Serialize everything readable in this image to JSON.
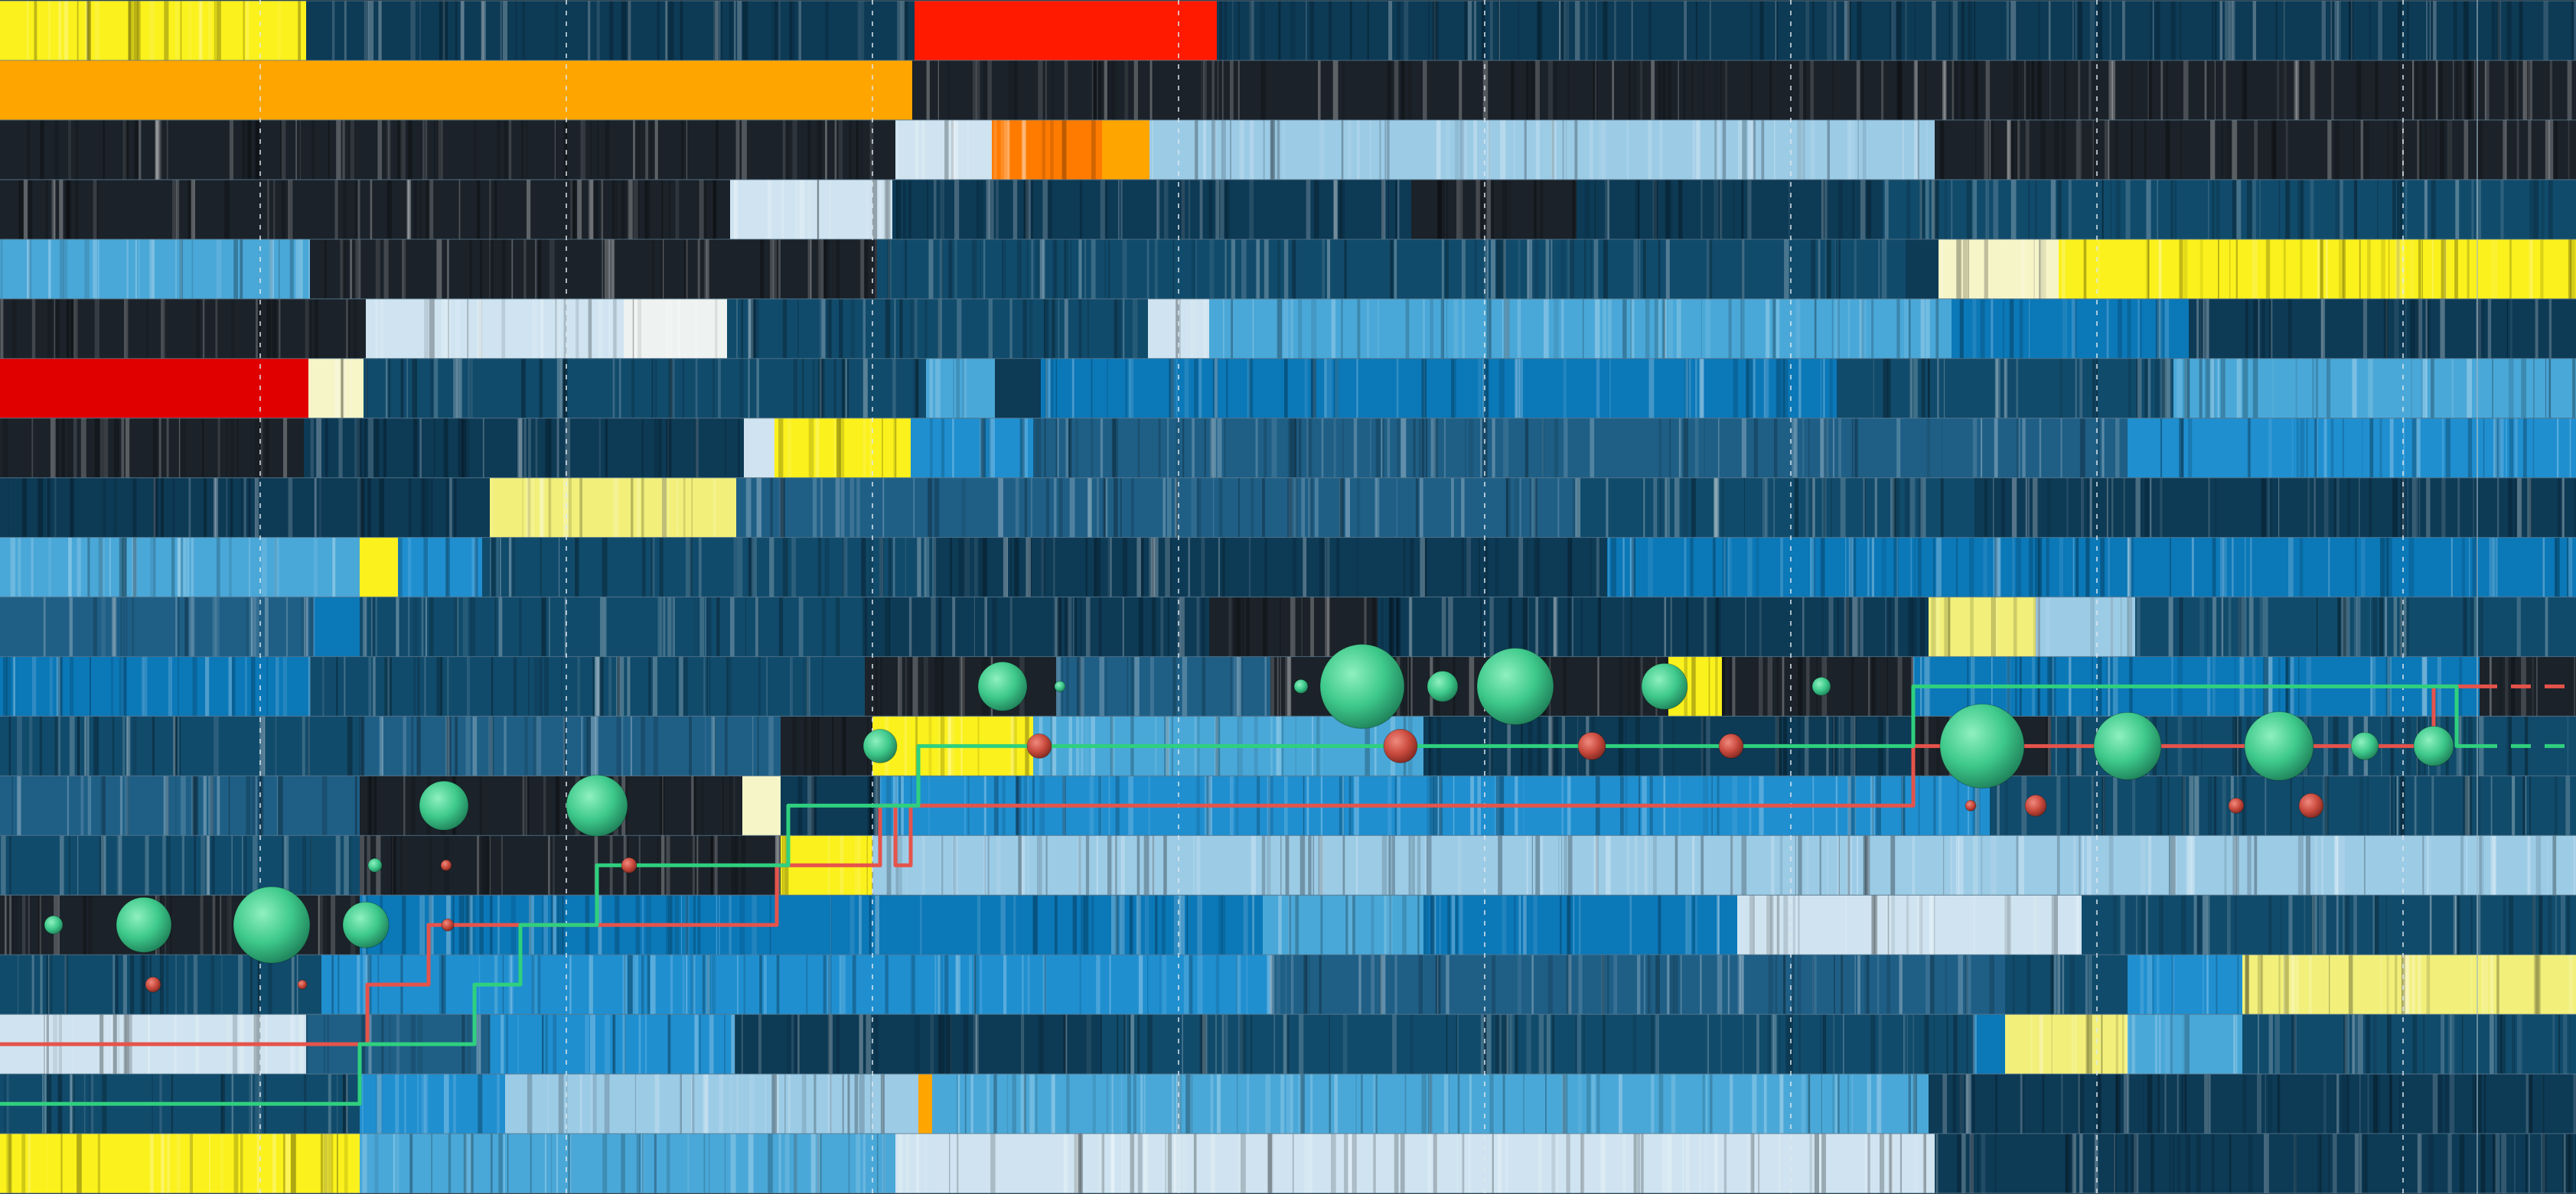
{
  "chart_data": {
    "type": "heatmap",
    "title": "",
    "xlabel": "",
    "ylabel": "",
    "grid": true,
    "legend": "none",
    "palette": {
      "dark": "#1b2229",
      "navy": "#0d3a55",
      "deep": "#114b6b",
      "mid": "#1f5f86",
      "blue": "#0b78b8",
      "bright": "#1f8fd0",
      "sky": "#4aa8d8",
      "pale": "#9ccbe6",
      "ice": "#cfe4f0",
      "white": "#eef2f0",
      "cream": "#f5f5c8",
      "lightyellow": "#f2f07a",
      "yellow": "#fbf11c",
      "gold": "#ffd21f",
      "orange": "#ffa500",
      "darkorange": "#ff7b00",
      "red": "#ff1a00",
      "crimson": "#e00000",
      "path_red": "#e5534b",
      "path_green": "#2fd07e",
      "node_green": "#3ec98b",
      "node_red": "#c94a3d"
    },
    "grid_x": [
      340,
      740,
      1140,
      1540,
      1940,
      2340,
      2740,
      3140
    ],
    "rows": [
      {
        "segments": [
          [
            0,
            400,
            "yellow"
          ],
          [
            400,
            1195,
            "navy"
          ],
          [
            1195,
            1590,
            "red"
          ],
          [
            1590,
            3237,
            "navy"
          ],
          [
            3237,
            3366,
            "navy"
          ]
        ]
      },
      {
        "segments": [
          [
            0,
            1192,
            "orange"
          ],
          [
            1192,
            3366,
            "dark"
          ]
        ]
      },
      {
        "segments": [
          [
            0,
            1170,
            "dark"
          ],
          [
            1170,
            1296,
            "ice"
          ],
          [
            1296,
            1440,
            "darkorange"
          ],
          [
            1440,
            1502,
            "orange"
          ],
          [
            1502,
            2528,
            "pale"
          ],
          [
            2528,
            3366,
            "dark"
          ]
        ]
      },
      {
        "segments": [
          [
            0,
            954,
            "dark"
          ],
          [
            954,
            1166,
            "ice"
          ],
          [
            1166,
            1844,
            "navy"
          ],
          [
            1844,
            2060,
            "dark"
          ],
          [
            2060,
            2460,
            "navy"
          ],
          [
            2460,
            3366,
            "deep"
          ]
        ]
      },
      {
        "segments": [
          [
            0,
            405,
            "sky"
          ],
          [
            405,
            1146,
            "dark"
          ],
          [
            1146,
            2490,
            "deep"
          ],
          [
            2490,
            2533,
            "navy"
          ],
          [
            2533,
            2690,
            "cream"
          ],
          [
            2690,
            3190,
            "yellow"
          ],
          [
            3190,
            3366,
            "yellow"
          ]
        ]
      },
      {
        "segments": [
          [
            0,
            478,
            "dark"
          ],
          [
            478,
            815,
            "ice"
          ],
          [
            815,
            950,
            "white"
          ],
          [
            950,
            1500,
            "deep"
          ],
          [
            1500,
            1580,
            "ice"
          ],
          [
            1580,
            2550,
            "sky"
          ],
          [
            2550,
            2860,
            "blue"
          ],
          [
            2860,
            3366,
            "navy"
          ]
        ]
      },
      {
        "segments": [
          [
            0,
            403,
            "crimson"
          ],
          [
            403,
            475,
            "cream"
          ],
          [
            475,
            1210,
            "deep"
          ],
          [
            1210,
            1300,
            "sky"
          ],
          [
            1300,
            1360,
            "navy"
          ],
          [
            1360,
            2400,
            "blue"
          ],
          [
            2400,
            2840,
            "deep"
          ],
          [
            2840,
            3366,
            "sky"
          ]
        ]
      },
      {
        "segments": [
          [
            0,
            397,
            "dark"
          ],
          [
            397,
            972,
            "navy"
          ],
          [
            972,
            1012,
            "ice"
          ],
          [
            1012,
            1190,
            "yellow"
          ],
          [
            1190,
            1350,
            "bright"
          ],
          [
            1350,
            2780,
            "mid"
          ],
          [
            2780,
            3366,
            "bright"
          ]
        ]
      },
      {
        "segments": [
          [
            0,
            600,
            "navy"
          ],
          [
            600,
            640,
            "navy"
          ],
          [
            640,
            962,
            "lightyellow"
          ],
          [
            962,
            2060,
            "mid"
          ],
          [
            2060,
            2580,
            "deep"
          ],
          [
            2580,
            3366,
            "navy"
          ]
        ]
      },
      {
        "segments": [
          [
            0,
            470,
            "sky"
          ],
          [
            470,
            520,
            "yellow"
          ],
          [
            520,
            630,
            "bright"
          ],
          [
            630,
            1220,
            "deep"
          ],
          [
            1220,
            2100,
            "navy"
          ],
          [
            2100,
            3366,
            "blue"
          ]
        ]
      },
      {
        "segments": [
          [
            0,
            410,
            "mid"
          ],
          [
            410,
            470,
            "blue"
          ],
          [
            470,
            1130,
            "deep"
          ],
          [
            1130,
            1580,
            "navy"
          ],
          [
            1580,
            1800,
            "dark"
          ],
          [
            1800,
            2520,
            "navy"
          ],
          [
            2520,
            2660,
            "lightyellow"
          ],
          [
            2660,
            2790,
            "pale"
          ],
          [
            2790,
            3366,
            "deep"
          ]
        ]
      },
      {
        "segments": [
          [
            0,
            405,
            "blue"
          ],
          [
            405,
            1130,
            "deep"
          ],
          [
            1130,
            1380,
            "dark"
          ],
          [
            1380,
            1660,
            "mid"
          ],
          [
            1660,
            2180,
            "dark"
          ],
          [
            2180,
            2250,
            "yellow"
          ],
          [
            2250,
            2500,
            "dark"
          ],
          [
            2500,
            3240,
            "blue"
          ],
          [
            3240,
            3366,
            "dark"
          ]
        ]
      },
      {
        "segments": [
          [
            0,
            470,
            "deep"
          ],
          [
            470,
            1020,
            "mid"
          ],
          [
            1020,
            1140,
            "dark"
          ],
          [
            1140,
            1350,
            "yellow"
          ],
          [
            1350,
            1860,
            "sky"
          ],
          [
            1860,
            2500,
            "navy"
          ],
          [
            2500,
            2680,
            "dark"
          ],
          [
            2680,
            3366,
            "deep"
          ]
        ]
      },
      {
        "segments": [
          [
            0,
            470,
            "mid"
          ],
          [
            470,
            970,
            "dark"
          ],
          [
            970,
            1020,
            "cream"
          ],
          [
            1020,
            1150,
            "navy"
          ],
          [
            1150,
            2600,
            "bright"
          ],
          [
            2600,
            3366,
            "deep"
          ]
        ]
      },
      {
        "segments": [
          [
            0,
            470,
            "deep"
          ],
          [
            470,
            1020,
            "dark"
          ],
          [
            1020,
            1140,
            "yellow"
          ],
          [
            1140,
            2700,
            "pale"
          ],
          [
            2700,
            3366,
            "pale"
          ]
        ]
      },
      {
        "segments": [
          [
            0,
            470,
            "dark"
          ],
          [
            470,
            1650,
            "blue"
          ],
          [
            1650,
            1860,
            "sky"
          ],
          [
            1860,
            2270,
            "blue"
          ],
          [
            2270,
            2720,
            "ice"
          ],
          [
            2720,
            3366,
            "deep"
          ]
        ]
      },
      {
        "segments": [
          [
            0,
            420,
            "deep"
          ],
          [
            420,
            1660,
            "bright"
          ],
          [
            1660,
            2620,
            "mid"
          ],
          [
            2620,
            2780,
            "deep"
          ],
          [
            2780,
            2930,
            "bright"
          ],
          [
            2930,
            3366,
            "lightyellow"
          ]
        ]
      },
      {
        "segments": [
          [
            0,
            400,
            "ice"
          ],
          [
            400,
            640,
            "mid"
          ],
          [
            640,
            960,
            "bright"
          ],
          [
            960,
            1440,
            "navy"
          ],
          [
            1440,
            2580,
            "deep"
          ],
          [
            2580,
            2620,
            "blue"
          ],
          [
            2620,
            2780,
            "lightyellow"
          ],
          [
            2780,
            2930,
            "sky"
          ],
          [
            2930,
            3366,
            "deep"
          ]
        ]
      },
      {
        "segments": [
          [
            0,
            470,
            "deep"
          ],
          [
            470,
            660,
            "bright"
          ],
          [
            660,
            1200,
            "pale"
          ],
          [
            1200,
            1218,
            "orange"
          ],
          [
            1218,
            2520,
            "sky"
          ],
          [
            2520,
            3366,
            "navy"
          ]
        ]
      },
      {
        "segments": [
          [
            0,
            470,
            "yellow"
          ],
          [
            470,
            1170,
            "sky"
          ],
          [
            1170,
            2528,
            "ice"
          ],
          [
            2528,
            3366,
            "navy"
          ]
        ]
      }
    ],
    "series": [
      {
        "color": "path_red",
        "points": [
          [
            0,
            17
          ],
          [
            480,
            17
          ],
          [
            480,
            16
          ],
          [
            560,
            16
          ],
          [
            560,
            15
          ],
          [
            910,
            15
          ],
          [
            1015,
            15
          ],
          [
            1015,
            14
          ],
          [
            1150,
            14
          ],
          [
            1150,
            13
          ],
          [
            1170,
            13
          ],
          [
            1170,
            14
          ],
          [
            1190,
            14
          ],
          [
            1190,
            13
          ],
          [
            2500,
            13
          ],
          [
            2500,
            12
          ],
          [
            3180,
            12
          ],
          [
            3180,
            11
          ],
          [
            3366,
            11
          ]
        ]
      },
      {
        "color": "path_green",
        "points": [
          [
            0,
            18
          ],
          [
            470,
            18
          ],
          [
            470,
            17
          ],
          [
            620,
            17
          ],
          [
            620,
            16
          ],
          [
            680,
            16
          ],
          [
            680,
            15
          ],
          [
            780,
            15
          ],
          [
            780,
            14
          ],
          [
            1030,
            14
          ],
          [
            1030,
            13
          ],
          [
            1200,
            13
          ],
          [
            1200,
            12
          ],
          [
            2500,
            12
          ],
          [
            2500,
            11
          ],
          [
            3210,
            11
          ],
          [
            3210,
            12
          ],
          [
            3366,
            12
          ]
        ]
      }
    ],
    "nodes": [
      {
        "row": 15,
        "x": 70,
        "r": 12,
        "color": "node_green"
      },
      {
        "row": 15,
        "x": 188,
        "r": 36,
        "color": "node_green"
      },
      {
        "row": 15,
        "x": 355,
        "r": 50,
        "color": "node_green"
      },
      {
        "row": 15,
        "x": 478,
        "r": 30,
        "color": "node_green"
      },
      {
        "row": 15,
        "x": 585,
        "r": 8,
        "color": "node_red"
      },
      {
        "row": 16,
        "x": 200,
        "r": 10,
        "color": "node_red"
      },
      {
        "row": 16,
        "x": 395,
        "r": 6,
        "color": "node_red"
      },
      {
        "row": 14,
        "x": 490,
        "r": 9,
        "color": "node_green"
      },
      {
        "row": 14,
        "x": 583,
        "r": 7,
        "color": "node_red"
      },
      {
        "row": 14,
        "x": 822,
        "r": 10,
        "color": "node_red"
      },
      {
        "row": 13,
        "x": 580,
        "r": 32,
        "color": "node_green"
      },
      {
        "row": 13,
        "x": 780,
        "r": 40,
        "color": "node_green"
      },
      {
        "row": 12,
        "x": 1150,
        "r": 22,
        "color": "node_green"
      },
      {
        "row": 12,
        "x": 1358,
        "r": 16,
        "color": "node_red"
      },
      {
        "row": 12,
        "x": 1830,
        "r": 22,
        "color": "node_red"
      },
      {
        "row": 12,
        "x": 2080,
        "r": 18,
        "color": "node_red"
      },
      {
        "row": 12,
        "x": 2262,
        "r": 16,
        "color": "node_red"
      },
      {
        "row": 12,
        "x": 2590,
        "r": 55,
        "color": "node_green"
      },
      {
        "row": 12,
        "x": 2780,
        "r": 44,
        "color": "node_green"
      },
      {
        "row": 12,
        "x": 2978,
        "r": 45,
        "color": "node_green"
      },
      {
        "row": 12,
        "x": 3090,
        "r": 18,
        "color": "node_green"
      },
      {
        "row": 12,
        "x": 3180,
        "r": 26,
        "color": "node_green"
      },
      {
        "row": 11,
        "x": 1310,
        "r": 32,
        "color": "node_green"
      },
      {
        "row": 11,
        "x": 1780,
        "r": 55,
        "color": "node_green"
      },
      {
        "row": 11,
        "x": 1885,
        "r": 20,
        "color": "node_green"
      },
      {
        "row": 11,
        "x": 1980,
        "r": 50,
        "color": "node_green"
      },
      {
        "row": 11,
        "x": 2175,
        "r": 30,
        "color": "node_green"
      },
      {
        "row": 11,
        "x": 2380,
        "r": 12,
        "color": "node_green"
      },
      {
        "row": 11,
        "x": 1385,
        "r": 7,
        "color": "node_green"
      },
      {
        "row": 11,
        "x": 1700,
        "r": 9,
        "color": "node_green"
      },
      {
        "row": 13,
        "x": 2575,
        "r": 7,
        "color": "node_red"
      },
      {
        "row": 13,
        "x": 2660,
        "r": 14,
        "color": "node_red"
      },
      {
        "row": 13,
        "x": 2922,
        "r": 10,
        "color": "node_red"
      },
      {
        "row": 13,
        "x": 3020,
        "r": 16,
        "color": "node_red"
      }
    ]
  }
}
